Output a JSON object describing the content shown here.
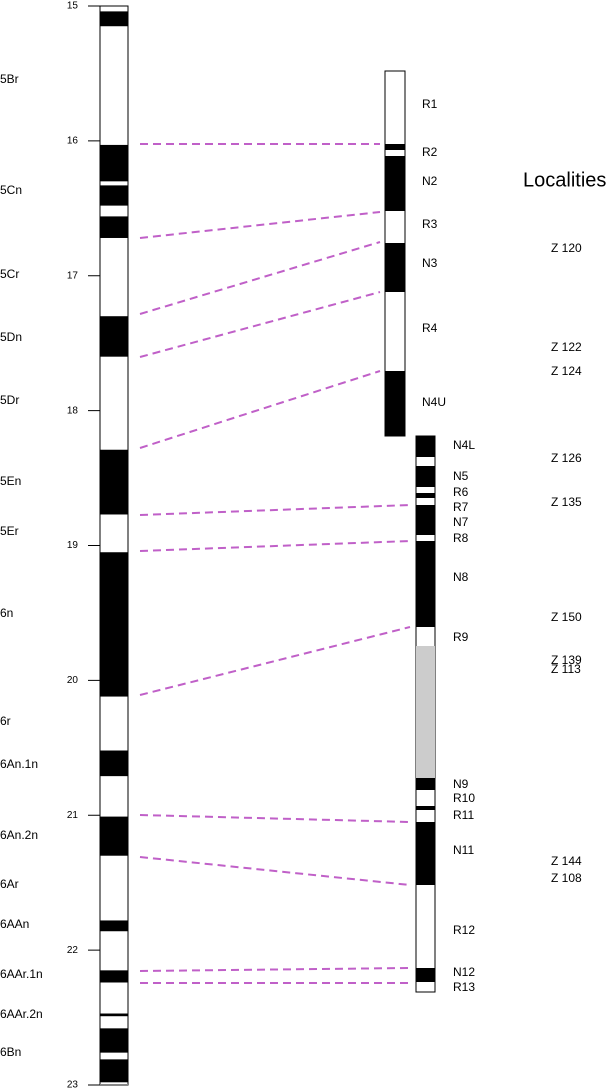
{
  "axis": {
    "ylim": [
      15,
      23
    ],
    "yticks": [
      15,
      16,
      17,
      18,
      19,
      20,
      21,
      22,
      23
    ]
  },
  "chrons": [
    "5Br",
    "5Cn",
    "5Cr",
    "5Dn",
    "5Dr",
    "5En",
    "5Er",
    "6n",
    "6r",
    "6An.1n",
    "6An.2n",
    "6Ar",
    "6AAn",
    "6AAr.1n",
    "6AAr.2n",
    "6Bn"
  ],
  "gpts_normal": [
    [
      15.04,
      15.15
    ],
    [
      16.03,
      16.3
    ],
    [
      16.33,
      16.48
    ],
    [
      16.56,
      16.72
    ],
    [
      17.3,
      17.6
    ],
    [
      18.29,
      18.77
    ],
    [
      19.05,
      20.12
    ],
    [
      20.52,
      20.71
    ],
    [
      21.01,
      21.3
    ],
    [
      21.78,
      21.86
    ],
    [
      22.15,
      22.24
    ],
    [
      22.47,
      22.49
    ],
    [
      22.58,
      22.76
    ],
    [
      22.81,
      22.98
    ]
  ],
  "section_zones": [
    "R1",
    "R2",
    "N2",
    "R3",
    "N3",
    "R4",
    "N4U",
    "N4L",
    "N5",
    "R6",
    "R7",
    "N7",
    "R8",
    "N8",
    "R9",
    "N9",
    "R10",
    "R11",
    "N11",
    "R12",
    "N12",
    "R13"
  ],
  "localities_title": "Localities",
  "localities": [
    "Z 120",
    "Z 122",
    "Z 124",
    "Z 126",
    "Z 135",
    "Z 150",
    "Z 139",
    "Z 113",
    "Z 144",
    "Z 108"
  ]
}
